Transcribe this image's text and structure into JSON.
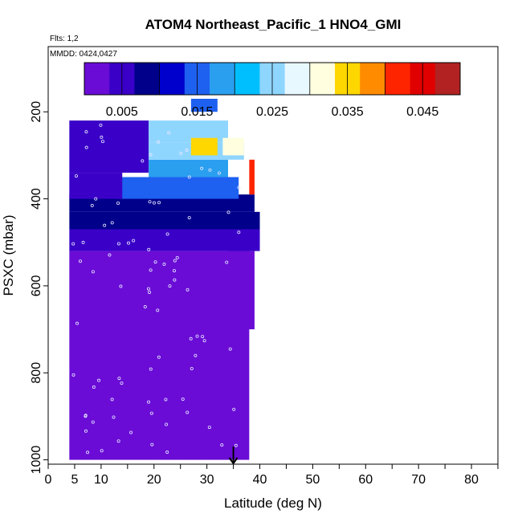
{
  "chart_data": {
    "type": "heatmap",
    "title": "ATOM4 Northeast_Pacific_1 HNO4_GMI",
    "flights_label": "Flts: 1,2",
    "dates_label": "MMDD: 0424,0427",
    "xlabel": "Latitude (deg N)",
    "ylabel": "PSXC (mbar)",
    "xlim": [
      0,
      85
    ],
    "ylim": [
      1010,
      50
    ],
    "y_reversed": true,
    "x_ticks": [
      0,
      5,
      10,
      20,
      30,
      40,
      50,
      60,
      70,
      80
    ],
    "x_minor_ticks": [
      15,
      25,
      35,
      45,
      55,
      65,
      75,
      85
    ],
    "y_ticks": [
      200,
      400,
      600,
      800,
      1000
    ],
    "colorbar": {
      "range": [
        0,
        0.05
      ],
      "tick_values": [
        0.005,
        0.015,
        0.025,
        0.035,
        0.045
      ],
      "tick_labels": [
        "0.005",
        "0.015",
        "0.025",
        "0.035",
        "0.045"
      ],
      "colors": [
        "#6a0cd6",
        "#3a00c8",
        "#00008b",
        "#0000cd",
        "#1e60f0",
        "#2a9ff0",
        "#00bfff",
        "#8fd6ff",
        "#e8f8ff",
        "#ffffe0",
        "#ffd700",
        "#ff8c00",
        "#ff2400",
        "#e00000",
        "#b22222"
      ]
    },
    "marker": {
      "x": 35,
      "label": "arrow"
    },
    "cells": [
      {
        "x": [
          4,
          38
        ],
        "y": [
          1000,
          520
        ],
        "value": 0.001
      },
      {
        "x": [
          34,
          39
        ],
        "y": [
          700,
          520
        ],
        "value": 0.003
      },
      {
        "x": [
          4,
          40
        ],
        "y": [
          520,
          470
        ],
        "value": 0.006
      },
      {
        "x": [
          4,
          40
        ],
        "y": [
          470,
          430
        ],
        "value": 0.007
      },
      {
        "x": [
          4,
          39
        ],
        "y": [
          430,
          390
        ],
        "value": 0.008
      },
      {
        "x": [
          13,
          36
        ],
        "y": [
          400,
          350
        ],
        "value": 0.016
      },
      {
        "x": [
          4,
          14
        ],
        "y": [
          400,
          340
        ],
        "value": 0.006
      },
      {
        "x": [
          4,
          19
        ],
        "y": [
          340,
          220
        ],
        "value": 0.005
      },
      {
        "x": [
          19,
          34
        ],
        "y": [
          350,
          310
        ],
        "value": 0.019
      },
      {
        "x": [
          19,
          37
        ],
        "y": [
          310,
          270
        ],
        "value": 0.024
      },
      {
        "x": [
          19,
          34
        ],
        "y": [
          270,
          220
        ],
        "value": 0.026
      },
      {
        "x": [
          27,
          32
        ],
        "y": [
          300,
          260
        ],
        "value": 0.036
      },
      {
        "x": [
          33,
          37
        ],
        "y": [
          300,
          260
        ],
        "value": 0.031
      },
      {
        "x": [
          27,
          32
        ],
        "y": [
          200,
          170
        ],
        "value": 0.015
      },
      {
        "x": [
          38,
          39
        ],
        "y": [
          390,
          310
        ],
        "value": 0.042
      }
    ]
  }
}
